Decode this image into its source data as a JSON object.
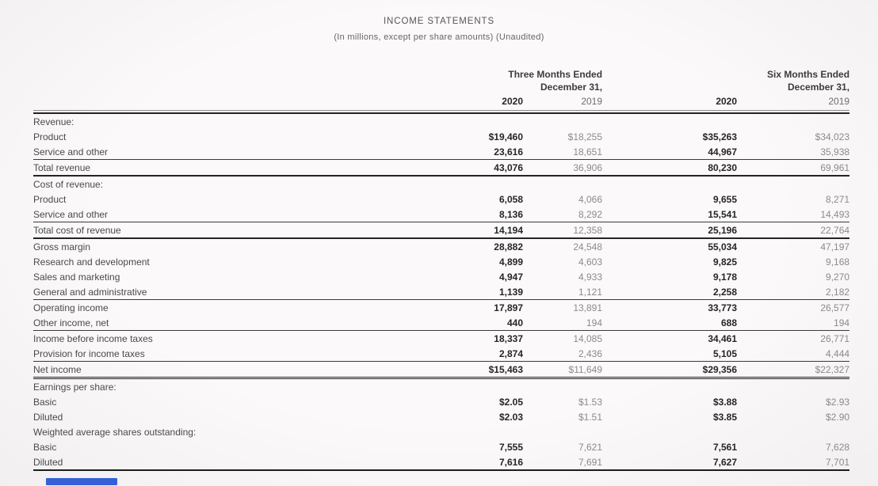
{
  "title": "INCOME STATEMENTS",
  "subtitle": "(In millions, except per share amounts) (Unaudited)",
  "header": {
    "three_months": {
      "line1": "Three Months Ended",
      "line2": "December 31,"
    },
    "six_months": {
      "line1": "Six Months Ended",
      "line2": "December 31,"
    },
    "years": [
      "2020",
      "2019",
      "2020",
      "2019"
    ]
  },
  "table": {
    "rows": [
      {
        "label": "Revenue:",
        "indent": 0,
        "section": true,
        "values": [
          "",
          "",
          "",
          ""
        ]
      },
      {
        "label": "Product",
        "indent": 1,
        "values": [
          "$19,460",
          "$18,255",
          "$35,263",
          "$34,023"
        ]
      },
      {
        "label": "Service and other",
        "indent": 1,
        "rule": "thin",
        "values": [
          "23,616",
          "18,651",
          "44,967",
          "35,938"
        ]
      },
      {
        "label": "Total revenue",
        "indent": 2,
        "rule": "thick",
        "values": [
          "43,076",
          "36,906",
          "80,230",
          "69,961"
        ]
      },
      {
        "label": "Cost of revenue:",
        "indent": 0,
        "section": true,
        "values": [
          "",
          "",
          "",
          ""
        ]
      },
      {
        "label": "Product",
        "indent": 1,
        "values": [
          "6,058",
          "4,066",
          "9,655",
          "8,271"
        ]
      },
      {
        "label": "Service and other",
        "indent": 1,
        "rule": "thin",
        "values": [
          "8,136",
          "8,292",
          "15,541",
          "14,493"
        ]
      },
      {
        "label": "Total cost of revenue",
        "indent": 2,
        "rule": "thick",
        "values": [
          "14,194",
          "12,358",
          "25,196",
          "22,764"
        ]
      },
      {
        "label": "Gross margin",
        "indent": 2,
        "values": [
          "28,882",
          "24,548",
          "55,034",
          "47,197"
        ]
      },
      {
        "label": "Research and development",
        "indent": 0,
        "values": [
          "4,899",
          "4,603",
          "9,825",
          "9,168"
        ]
      },
      {
        "label": "Sales and marketing",
        "indent": 0,
        "values": [
          "4,947",
          "4,933",
          "9,178",
          "9,270"
        ]
      },
      {
        "label": "General and administrative",
        "indent": 0,
        "rule": "thin",
        "values": [
          "1,139",
          "1,121",
          "2,258",
          "2,182"
        ]
      },
      {
        "label": "Operating income",
        "indent": 0,
        "values": [
          "17,897",
          "13,891",
          "33,773",
          "26,577"
        ]
      },
      {
        "label": "Other income, net",
        "indent": 0,
        "rule": "thin",
        "values": [
          "440",
          "194",
          "688",
          "194"
        ]
      },
      {
        "label": "Income before income taxes",
        "indent": 0,
        "values": [
          "18,337",
          "14,085",
          "34,461",
          "26,771"
        ]
      },
      {
        "label": "Provision for income taxes",
        "indent": 0,
        "rule": "thin",
        "values": [
          "2,874",
          "2,436",
          "5,105",
          "4,444"
        ]
      },
      {
        "label": "Net income",
        "indent": 0,
        "rule": "double",
        "values": [
          "$15,463",
          "$11,649",
          "$29,356",
          "$22,327"
        ]
      },
      {
        "label": "Earnings per share:",
        "indent": 0,
        "section": true,
        "values": [
          "",
          "",
          "",
          ""
        ]
      },
      {
        "label": "Basic",
        "indent": 1,
        "values": [
          "$2.05",
          "$1.53",
          "$3.88",
          "$2.93"
        ]
      },
      {
        "label": "Diluted",
        "indent": 1,
        "values": [
          "$2.03",
          "$1.51",
          "$3.85",
          "$2.90"
        ]
      },
      {
        "label": "Weighted average shares outstanding:",
        "indent": 0,
        "section": true,
        "values": [
          "",
          "",
          "",
          ""
        ]
      },
      {
        "label": "Basic",
        "indent": 1,
        "values": [
          "7,555",
          "7,621",
          "7,561",
          "7,628"
        ]
      },
      {
        "label": "Diluted",
        "indent": 1,
        "rule": "end",
        "values": [
          "7,616",
          "7,691",
          "7,627",
          "7,701"
        ]
      }
    ]
  },
  "colors": {
    "accent_blue": "#3461d8",
    "bold_value_text": "#262626",
    "light_value_text": "#8b8b8b",
    "label_text": "#4a4a4a"
  }
}
